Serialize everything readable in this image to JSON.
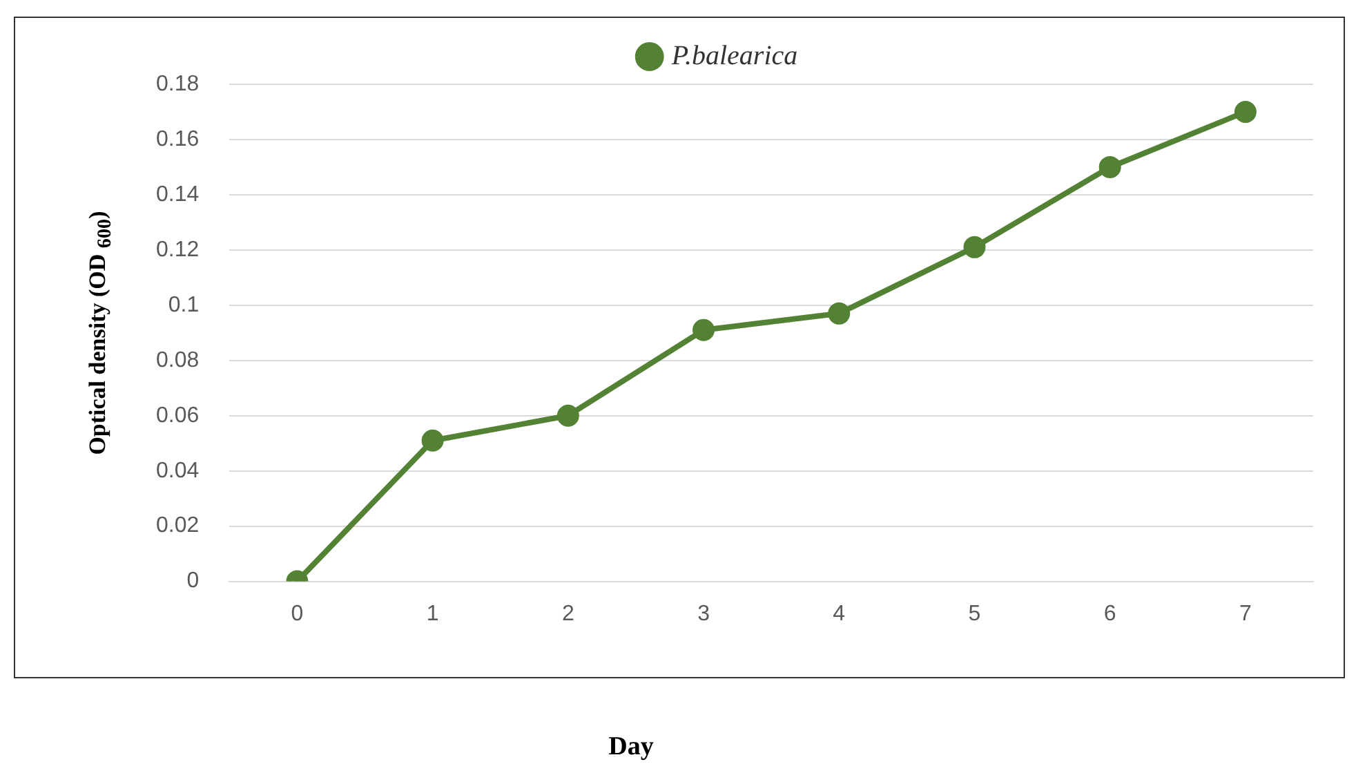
{
  "chart_data": {
    "type": "line",
    "xlabel": "Day",
    "ylabel": "Optical density (OD $_{600}$)",
    "categories": [
      "0",
      "1",
      "2",
      "3",
      "4",
      "5",
      "6",
      "7"
    ],
    "series": [
      {
        "name": "P.balearica",
        "color": "#548235",
        "values": [
          0,
          0.051,
          0.06,
          0.091,
          0.097,
          0.121,
          0.15,
          0.17
        ]
      }
    ],
    "ylim": [
      0,
      0.18
    ],
    "yticks": [
      0,
      0.02,
      0.04,
      0.06,
      0.08,
      0.1,
      0.12,
      0.14,
      0.16,
      0.18
    ],
    "grid": "y",
    "legend": "top",
    "marker": "circle",
    "line_style": "solid"
  }
}
